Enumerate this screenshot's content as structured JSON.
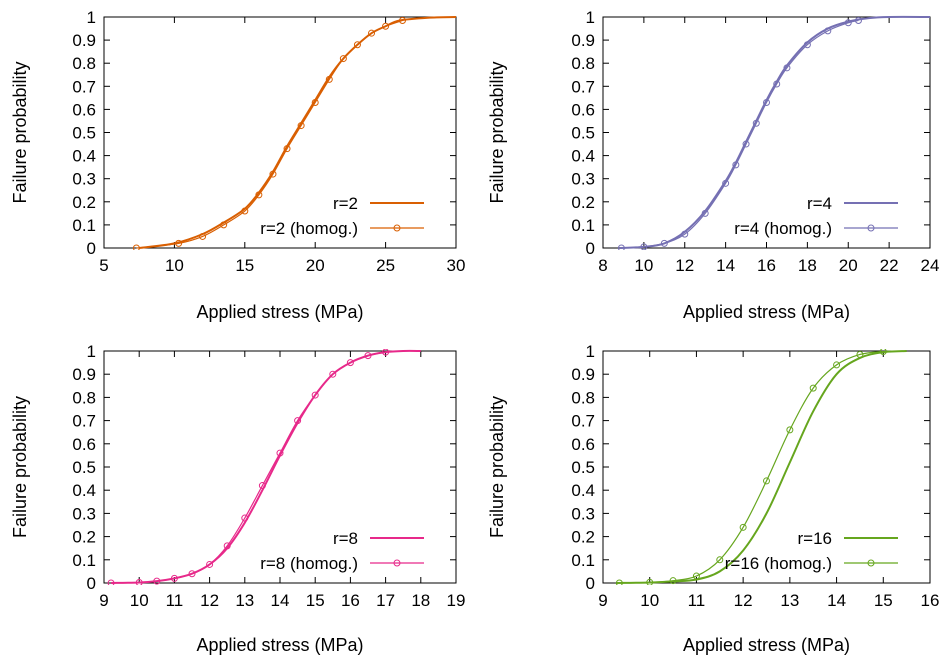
{
  "chart_data": [
    {
      "type": "line",
      "xlabel": "Applied stress (MPa)",
      "ylabel": "Failure probability",
      "xlim": [
        5,
        30
      ],
      "ylim": [
        0,
        1
      ],
      "xticks": [
        "5",
        "10",
        "15",
        "20",
        "25",
        "30"
      ],
      "yticks": [
        "0",
        "0.1",
        "0.2",
        "0.3",
        "0.4",
        "0.5",
        "0.6",
        "0.7",
        "0.8",
        "0.9",
        "1"
      ],
      "grid": false,
      "legend": "bottom-right",
      "color": "#d95f02",
      "series": [
        {
          "name": "r=2",
          "style": "line",
          "x": [
            7.5,
            10,
            12,
            13.5,
            15,
            16,
            17,
            18,
            19,
            20,
            21,
            22,
            23,
            24,
            25,
            26,
            28,
            30
          ],
          "y": [
            0.0,
            0.02,
            0.06,
            0.11,
            0.17,
            0.24,
            0.33,
            0.44,
            0.54,
            0.64,
            0.74,
            0.82,
            0.88,
            0.93,
            0.96,
            0.985,
            0.997,
            1.0
          ]
        },
        {
          "name": "r=2 (homog.)",
          "style": "line-circles",
          "x": [
            7.3,
            10.3,
            12,
            13.5,
            15,
            16,
            17,
            18,
            19,
            20,
            21,
            22,
            23,
            24,
            25,
            26.2
          ],
          "y": [
            0.0,
            0.02,
            0.05,
            0.1,
            0.16,
            0.23,
            0.32,
            0.43,
            0.53,
            0.63,
            0.73,
            0.82,
            0.88,
            0.93,
            0.96,
            0.985
          ]
        }
      ]
    },
    {
      "type": "line",
      "xlabel": "Applied stress (MPa)",
      "ylabel": "Failure probability",
      "xlim": [
        8,
        24
      ],
      "ylim": [
        0,
        1
      ],
      "xticks": [
        "8",
        "10",
        "12",
        "14",
        "16",
        "18",
        "20",
        "22",
        "24"
      ],
      "yticks": [
        "0",
        "0.1",
        "0.2",
        "0.3",
        "0.4",
        "0.5",
        "0.6",
        "0.7",
        "0.8",
        "0.9",
        "1"
      ],
      "grid": false,
      "legend": "bottom-right",
      "color": "#7570b3",
      "series": [
        {
          "name": "r=4",
          "style": "line",
          "x": [
            8.8,
            10,
            11,
            12,
            13,
            14,
            14.5,
            15,
            15.5,
            16,
            16.5,
            17,
            18,
            19,
            20,
            21,
            22,
            24
          ],
          "y": [
            0.0,
            0.005,
            0.02,
            0.07,
            0.16,
            0.29,
            0.37,
            0.46,
            0.55,
            0.64,
            0.72,
            0.79,
            0.89,
            0.95,
            0.98,
            0.995,
            1.0,
            1.0
          ]
        },
        {
          "name": "r=4 (homog.)",
          "style": "line-circles",
          "x": [
            8.9,
            10,
            11,
            12,
            13,
            14,
            14.5,
            15,
            15.5,
            16,
            16.5,
            17,
            18,
            19,
            20,
            20.5
          ],
          "y": [
            0.0,
            0.005,
            0.02,
            0.06,
            0.15,
            0.28,
            0.36,
            0.45,
            0.54,
            0.63,
            0.71,
            0.78,
            0.88,
            0.94,
            0.975,
            0.985
          ]
        }
      ]
    },
    {
      "type": "line",
      "xlabel": "Applied stress (MPa)",
      "ylabel": "Failure probability",
      "xlim": [
        9,
        19
      ],
      "ylim": [
        0,
        1
      ],
      "xticks": [
        "9",
        "10",
        "11",
        "12",
        "13",
        "14",
        "15",
        "16",
        "17",
        "18",
        "19"
      ],
      "yticks": [
        "0",
        "0.1",
        "0.2",
        "0.3",
        "0.4",
        "0.5",
        "0.6",
        "0.7",
        "0.8",
        "0.9",
        "1"
      ],
      "grid": false,
      "legend": "bottom-right",
      "color": "#e7298a",
      "series": [
        {
          "name": "r=8",
          "style": "line",
          "x": [
            9.2,
            10,
            10.5,
            11,
            11.5,
            12,
            12.5,
            13,
            13.5,
            14,
            14.5,
            15,
            15.5,
            16,
            16.5,
            17,
            17.5,
            18
          ],
          "y": [
            0.0,
            0.002,
            0.008,
            0.02,
            0.04,
            0.08,
            0.15,
            0.26,
            0.4,
            0.55,
            0.69,
            0.81,
            0.9,
            0.95,
            0.98,
            0.995,
            1.0,
            1.0
          ]
        },
        {
          "name": "r=8 (homog.)",
          "style": "line-circles",
          "x": [
            9.2,
            10,
            10.5,
            11,
            11.5,
            12,
            12.5,
            13,
            13.5,
            14,
            14.5,
            15,
            15.5,
            16,
            16.5,
            17
          ],
          "y": [
            0.0,
            0.002,
            0.008,
            0.02,
            0.04,
            0.08,
            0.16,
            0.28,
            0.42,
            0.56,
            0.7,
            0.81,
            0.9,
            0.95,
            0.98,
            0.995
          ]
        }
      ]
    },
    {
      "type": "line",
      "xlabel": "Applied stress (MPa)",
      "ylabel": "Failure probability",
      "xlim": [
        9,
        16
      ],
      "ylim": [
        0,
        1
      ],
      "xticks": [
        "9",
        "10",
        "11",
        "12",
        "13",
        "14",
        "15",
        "16"
      ],
      "yticks": [
        "0",
        "0.1",
        "0.2",
        "0.3",
        "0.4",
        "0.5",
        "0.6",
        "0.7",
        "0.8",
        "0.9",
        "1"
      ],
      "grid": false,
      "legend": "bottom-right",
      "color": "#66a61e",
      "series": [
        {
          "name": "r=16",
          "style": "line",
          "x": [
            9.3,
            10,
            10.5,
            11,
            11.5,
            12,
            12.5,
            13,
            13.5,
            14,
            14.5,
            15,
            15.5
          ],
          "y": [
            0.0,
            0.002,
            0.007,
            0.015,
            0.05,
            0.14,
            0.3,
            0.52,
            0.74,
            0.9,
            0.97,
            0.995,
            1.0
          ]
        },
        {
          "name": "r=16 (homog.)",
          "style": "line-circles",
          "x": [
            9.35,
            10,
            10.5,
            11,
            11.5,
            12,
            12.5,
            13,
            13.5,
            14,
            14.5,
            15
          ],
          "y": [
            0.0,
            0.003,
            0.01,
            0.03,
            0.1,
            0.24,
            0.44,
            0.66,
            0.84,
            0.94,
            0.985,
            0.998
          ]
        }
      ]
    }
  ]
}
